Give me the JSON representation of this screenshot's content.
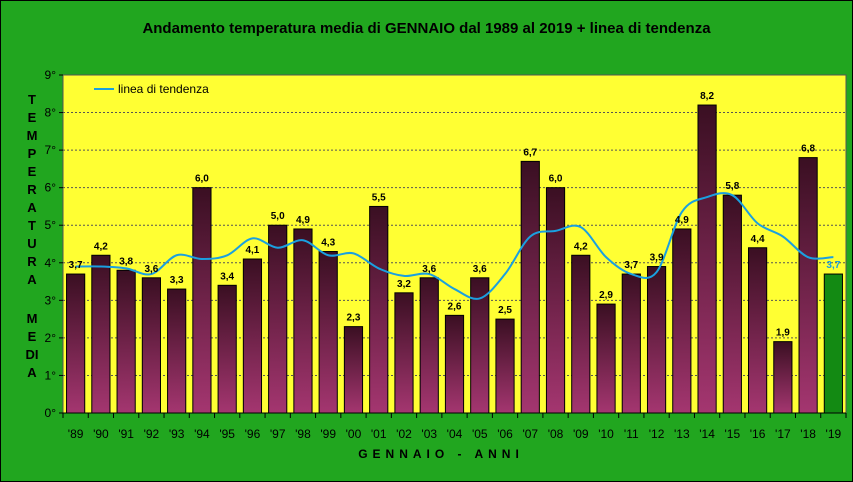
{
  "chart_data": {
    "type": "bar",
    "title": "Andamento temperatura media di GENNAIO dal 1989 al 2019 + linea di tendenza",
    "ylabel_top": "TEMPERATURA",
    "ylabel_bottom": "MEDIA",
    "xlabel": "GENNAIO - ANNI",
    "ylim": [
      0,
      9
    ],
    "yticks": [
      "0°",
      "1°",
      "2°",
      "3°",
      "4°",
      "5°",
      "6°",
      "7°",
      "8°",
      "9°"
    ],
    "categories": [
      "'89",
      "'90",
      "'91",
      "'92",
      "'93",
      "'94",
      "'95",
      "'96",
      "'97",
      "'98",
      "'99",
      "'00",
      "'01",
      "'02",
      "'03",
      "'04",
      "'05",
      "'06",
      "'07",
      "'08",
      "'09",
      "'10",
      "'11",
      "'12",
      "'13",
      "'14",
      "'15",
      "'16",
      "'17",
      "'18",
      "'19"
    ],
    "values": [
      3.7,
      4.2,
      3.8,
      3.6,
      3.3,
      6.0,
      3.4,
      4.1,
      5.0,
      4.9,
      4.3,
      2.3,
      5.5,
      3.2,
      3.6,
      2.6,
      3.6,
      2.5,
      6.7,
      6.0,
      4.2,
      2.9,
      3.7,
      3.9,
      4.9,
      8.2,
      5.8,
      4.4,
      1.9,
      6.8,
      3.7
    ],
    "value_labels": [
      "3,7",
      "4,2",
      "3,8",
      "3,6",
      "3,3",
      "6,0",
      "3,4",
      "4,1",
      "5,0",
      "4,9",
      "4,3",
      "2,3",
      "5,5",
      "3,2",
      "3,6",
      "2,6",
      "3,6",
      "2,5",
      "6,7",
      "6,0",
      "4,2",
      "2,9",
      "3,7",
      "3,9",
      "4,9",
      "8,2",
      "5,8",
      "4,4",
      "1,9",
      "6,8",
      "3,7"
    ],
    "trend": {
      "name": "linea di tendenza",
      "values": [
        3.9,
        3.9,
        3.85,
        3.7,
        4.2,
        4.1,
        4.2,
        4.65,
        4.4,
        4.6,
        4.2,
        4.25,
        3.85,
        3.65,
        3.7,
        3.3,
        3.05,
        3.7,
        4.7,
        4.85,
        4.95,
        4.15,
        3.7,
        3.75,
        5.35,
        5.75,
        5.8,
        5.05,
        4.7,
        4.15,
        4.15
      ]
    },
    "legend_position": "top-left",
    "grid": true,
    "colors": {
      "plot_background": "#ffff33",
      "bar_top": "#3a0f22",
      "bar_bottom": "#a43670",
      "last_bar": "#138a13",
      "trend_line": "#1aa0e0",
      "last_label": "#1aa0e0"
    }
  }
}
